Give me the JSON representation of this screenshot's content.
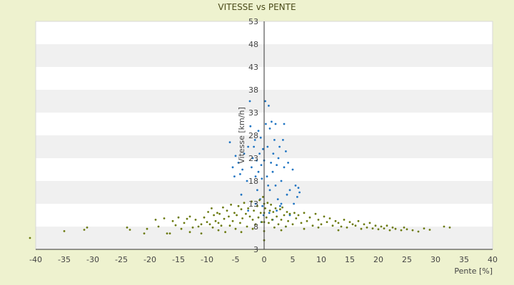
{
  "chart_data": {
    "type": "scatter",
    "title": "VITESSE vs PENTE",
    "xlabel": "Pente [%]",
    "ylabel": "Vitesse [km/h]",
    "xlim": [
      -40,
      40
    ],
    "ylim": [
      3,
      53
    ],
    "x_ticks": [
      "-40",
      "-35",
      "-30",
      "-25",
      "-20",
      "-15",
      "-10",
      "-5",
      "0",
      "5",
      "10",
      "15",
      "20",
      "25",
      "30",
      "35",
      "40"
    ],
    "y_ticks": [
      "3",
      "8",
      "13",
      "18",
      "23",
      "28",
      "33",
      "38",
      "43",
      "48",
      "53"
    ],
    "grid": "alternating horizontal bands",
    "colors": {
      "background": "#eef2cf",
      "band_light": "#ffffff",
      "band_dark": "#f0f0f0",
      "axis": "#333333",
      "series_fast": "#1f74c2",
      "series_slow": "#6b7a10"
    },
    "series": [
      {
        "color": "#1f74c2",
        "points": [
          [
            -6,
            26.5
          ],
          [
            -5.5,
            21
          ],
          [
            -5.2,
            19
          ],
          [
            -5,
            23.5
          ],
          [
            -4.5,
            22
          ],
          [
            -4.2,
            19.5
          ],
          [
            -4,
            15
          ],
          [
            -3.8,
            20.5
          ],
          [
            -3.5,
            24
          ],
          [
            -3,
            18
          ],
          [
            -2.8,
            25.5
          ],
          [
            -2.5,
            35.5
          ],
          [
            -2.4,
            30
          ],
          [
            -2.2,
            21
          ],
          [
            -2,
            23
          ],
          [
            -1.8,
            25.5
          ],
          [
            -1.6,
            27
          ],
          [
            -1.5,
            19
          ],
          [
            -1.3,
            22.5
          ],
          [
            -1.2,
            16
          ],
          [
            -1,
            29
          ],
          [
            -1,
            20
          ],
          [
            -0.8,
            24
          ],
          [
            -0.7,
            14
          ],
          [
            -0.6,
            27.5
          ],
          [
            -0.5,
            21.5
          ],
          [
            -0.4,
            18.5
          ],
          [
            -0.3,
            12.5
          ],
          [
            -0.2,
            25
          ],
          [
            -0.1,
            10.5
          ],
          [
            0,
            22.5
          ],
          [
            0.2,
            35.5
          ],
          [
            0.3,
            30.5
          ],
          [
            0.5,
            19
          ],
          [
            0.6,
            25.5
          ],
          [
            0.7,
            17
          ],
          [
            0.8,
            34.5
          ],
          [
            1,
            29.5
          ],
          [
            1.2,
            22
          ],
          [
            1.3,
            31
          ],
          [
            1.5,
            20
          ],
          [
            1.6,
            24
          ],
          [
            1.8,
            27
          ],
          [
            2,
            30.5
          ],
          [
            2,
            17
          ],
          [
            2.2,
            21.5
          ],
          [
            2.4,
            14
          ],
          [
            2.5,
            23
          ],
          [
            2.7,
            25.5
          ],
          [
            3,
            18
          ],
          [
            3,
            13
          ],
          [
            3.3,
            27
          ],
          [
            3.5,
            30.5
          ],
          [
            3.5,
            21
          ],
          [
            3.8,
            24.5
          ],
          [
            4,
            15
          ],
          [
            4.2,
            22
          ],
          [
            4.5,
            16
          ],
          [
            5,
            20.5
          ],
          [
            5.2,
            13
          ],
          [
            5.5,
            17
          ],
          [
            5.8,
            14.5
          ],
          [
            6,
            16.5
          ],
          [
            6.2,
            15.5
          ],
          [
            2.8,
            12.5
          ],
          [
            1,
            16
          ],
          [
            -1.5,
            13
          ],
          [
            0.9,
            11
          ],
          [
            -2.8,
            11.5
          ],
          [
            3.8,
            8
          ],
          [
            1.5,
            9.5
          ],
          [
            -0.5,
            9
          ],
          [
            4.5,
            10.5
          ],
          [
            2.2,
            11.5
          ]
        ]
      },
      {
        "color": "#6b7a10",
        "points": [
          [
            -41,
            5.5
          ],
          [
            -35,
            7
          ],
          [
            -31.5,
            7.3
          ],
          [
            -31,
            7.8
          ],
          [
            -24,
            7.8
          ],
          [
            -23.5,
            7.3
          ],
          [
            -21,
            6.5
          ],
          [
            -20.5,
            7.5
          ],
          [
            -19,
            9.5
          ],
          [
            -18.5,
            8
          ],
          [
            -17.5,
            9.8
          ],
          [
            -17,
            6.5
          ],
          [
            -16,
            9.2
          ],
          [
            -15.5,
            8.3
          ],
          [
            -15,
            10
          ],
          [
            -14.5,
            7.5
          ],
          [
            -14,
            8.8
          ],
          [
            -13.5,
            9.7
          ],
          [
            -13,
            10.2
          ],
          [
            -12.5,
            7.8
          ],
          [
            -12,
            9.5
          ],
          [
            -11.5,
            8
          ],
          [
            -11,
            6.5
          ],
          [
            -10.5,
            10
          ],
          [
            -10,
            9
          ],
          [
            -9.8,
            11.2
          ],
          [
            -9.5,
            8.5
          ],
          [
            -9.2,
            12
          ],
          [
            -9,
            7.8
          ],
          [
            -8.8,
            10.5
          ],
          [
            -8.5,
            9.2
          ],
          [
            -8.2,
            11
          ],
          [
            -8,
            7.2
          ],
          [
            -7.8,
            10.8
          ],
          [
            -7.5,
            8.2
          ],
          [
            -7.2,
            12.2
          ],
          [
            -7,
            9.7
          ],
          [
            -6.8,
            6.8
          ],
          [
            -6.5,
            11.5
          ],
          [
            -6.2,
            10.2
          ],
          [
            -6,
            8.2
          ],
          [
            -5.8,
            12.8
          ],
          [
            -5.5,
            9.2
          ],
          [
            -5.2,
            11
          ],
          [
            -5,
            7.5
          ],
          [
            -4.8,
            10.5
          ],
          [
            -4.5,
            12.5
          ],
          [
            -4.2,
            8.8
          ],
          [
            -4,
            11.8
          ],
          [
            -3.8,
            9.8
          ],
          [
            -3.5,
            13.2
          ],
          [
            -3.2,
            10.8
          ],
          [
            -3,
            8
          ],
          [
            -2.8,
            12
          ],
          [
            -2.5,
            10.2
          ],
          [
            -2.2,
            13.5
          ],
          [
            -2,
            9.5
          ],
          [
            -1.8,
            11.5
          ],
          [
            -1.5,
            8.5
          ],
          [
            -1.2,
            12.5
          ],
          [
            -1,
            10
          ],
          [
            -0.8,
            13.8
          ],
          [
            -0.6,
            11
          ],
          [
            -0.4,
            9
          ],
          [
            -0.2,
            14.5
          ],
          [
            0,
            5
          ],
          [
            0,
            7
          ],
          [
            0,
            9
          ],
          [
            0,
            11
          ],
          [
            0,
            13
          ],
          [
            0.2,
            12
          ],
          [
            0.4,
            10
          ],
          [
            0.6,
            13.2
          ],
          [
            0.8,
            8.8
          ],
          [
            1,
            11.5
          ],
          [
            1.2,
            12.8
          ],
          [
            1.4,
            9.5
          ],
          [
            1.6,
            11.2
          ],
          [
            1.8,
            7.8
          ],
          [
            2,
            12
          ],
          [
            2.2,
            10.2
          ],
          [
            2.5,
            8.5
          ],
          [
            2.8,
            11.8
          ],
          [
            3,
            9.5
          ],
          [
            3.2,
            12.2
          ],
          [
            3.5,
            10.5
          ],
          [
            3.8,
            8
          ],
          [
            4,
            11.2
          ],
          [
            4.2,
            9.2
          ],
          [
            4.5,
            10.8
          ],
          [
            5,
            8.5
          ],
          [
            5.3,
            11
          ],
          [
            5.6,
            9.8
          ],
          [
            6,
            10.5
          ],
          [
            6.5,
            8.8
          ],
          [
            7,
            11
          ],
          [
            7.5,
            9.2
          ],
          [
            8,
            10
          ],
          [
            8.5,
            8.2
          ],
          [
            9,
            10.8
          ],
          [
            9.5,
            9.5
          ],
          [
            10,
            8.5
          ],
          [
            10.5,
            10.2
          ],
          [
            11,
            9
          ],
          [
            11.5,
            9.8
          ],
          [
            12,
            8.2
          ],
          [
            12.5,
            9.2
          ],
          [
            13,
            8.8
          ],
          [
            13.5,
            8
          ],
          [
            14,
            9.5
          ],
          [
            14.5,
            7.8
          ],
          [
            15,
            9
          ],
          [
            15.5,
            8.5
          ],
          [
            16,
            8.2
          ],
          [
            16.5,
            9.2
          ],
          [
            17,
            7.5
          ],
          [
            17.5,
            8.5
          ],
          [
            18,
            7.8
          ],
          [
            18.5,
            8.8
          ],
          [
            19,
            7.6
          ],
          [
            19.5,
            8.2
          ],
          [
            20,
            7.4
          ],
          [
            20.5,
            8
          ],
          [
            21,
            7.6
          ],
          [
            21.5,
            8.2
          ],
          [
            22,
            7.2
          ],
          [
            22.5,
            7.8
          ],
          [
            23,
            7.5
          ],
          [
            24,
            7.2
          ],
          [
            24.5,
            7.8
          ],
          [
            25,
            7.4
          ],
          [
            26,
            7.2
          ],
          [
            27,
            6.9
          ],
          [
            28,
            7.6
          ],
          [
            29,
            7.3
          ],
          [
            31.5,
            8
          ],
          [
            32.5,
            7.8
          ],
          [
            -11,
            8.5
          ],
          [
            -16.5,
            6.5
          ],
          [
            -13,
            6.8
          ],
          [
            -8,
            8.8
          ],
          [
            -4,
            6.8
          ],
          [
            -2,
            7.5
          ],
          [
            3,
            7.2
          ],
          [
            7,
            7.5
          ],
          [
            9.5,
            7.8
          ],
          [
            13,
            7.2
          ]
        ]
      }
    ]
  }
}
